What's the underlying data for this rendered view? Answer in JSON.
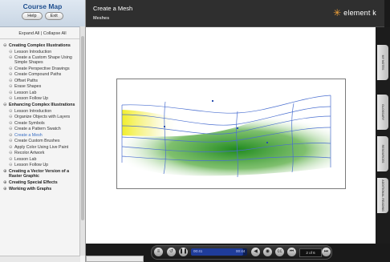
{
  "sidebar": {
    "title": "Course Map",
    "help_label": "Help",
    "exit_label": "Exit",
    "expand_all": "Expand All",
    "separator": "|",
    "collapse_all": "Collapse All",
    "modules": [
      {
        "toggle": "⊖",
        "label": "Creating Complex Illustrations",
        "lessons": [
          "Lesson Introduction",
          "Create a Custom Shape Using Simple Shapes",
          "Create Perspective Drawings",
          "Create Compound Paths",
          "Offset Paths",
          "Erase Shapes",
          "Lesson Lab",
          "Lesson Follow Up"
        ]
      },
      {
        "toggle": "⊖",
        "label": "Enhancing Complex Illustrations",
        "lessons": [
          "Lesson Introduction",
          "Organize Objects with Layers",
          "Create Symbols",
          "Create a Pattern Swatch",
          "Create a Mesh",
          "Create Custom Brushes",
          "Apply Color Using Live Paint",
          "Recolor Artwork",
          "Lesson Lab",
          "Lesson Follow Up"
        ]
      },
      {
        "toggle": "⊕",
        "label": "Creating a Vector Version of a Raster Graphic",
        "lessons": []
      },
      {
        "toggle": "⊕",
        "label": "Creating Special Effects",
        "lessons": []
      },
      {
        "toggle": "⊕",
        "label": "Working with Graphs",
        "lessons": []
      }
    ]
  },
  "header": {
    "title": "Create a Mesh",
    "subtitle": "Meshes",
    "logo_text": "element k",
    "logo_symbol": "✳"
  },
  "tabs": [
    "MY NOTES",
    "GLOSSARY",
    "RESOURCES",
    "ADDITIONAL READING"
  ],
  "controls": {
    "current_time": "00:41",
    "total_time": "00:44",
    "progress_fraction": 0.93,
    "page": "2 of 6"
  },
  "colors": {
    "accent": "#3a6fc4",
    "header_bg": "#2f2f2f",
    "logo_star": "#f2a33a"
  }
}
